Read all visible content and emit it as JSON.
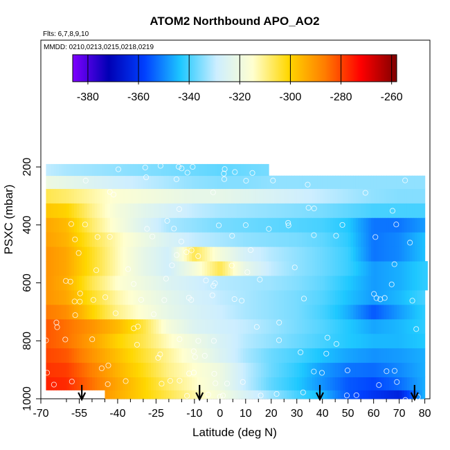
{
  "chart_data": {
    "type": "heatmap",
    "title": "ATOM2 Northbound APO_AO2",
    "annotation_flights": "Flts: 6,7,8,9,10",
    "annotation_dates": "MMDD: 0210,0213,0215,0218,0219",
    "xlabel": "Latitude (deg N)",
    "ylabel": "PSXC (mbar)",
    "xlim": [
      -70,
      82
    ],
    "ylim": [
      1000,
      100
    ],
    "y_reversed": true,
    "x_ticks": [
      "-70",
      "-55",
      "-40",
      "-25",
      "-10",
      "0",
      "10",
      "20",
      "30",
      "40",
      "50",
      "60",
      "70",
      "80"
    ],
    "x_tick_values": [
      -70,
      -55,
      -40,
      -25,
      -10,
      0,
      10,
      20,
      30,
      40,
      50,
      60,
      70,
      80
    ],
    "x_minor_ticks": [
      -60,
      -50,
      -45,
      -35,
      -30,
      -20,
      -15,
      -5,
      5,
      15,
      25,
      35,
      45,
      55,
      65,
      75
    ],
    "y_ticks": [
      "200",
      "400",
      "600",
      "800",
      "1000"
    ],
    "y_tick_values": [
      200,
      400,
      600,
      800,
      1000
    ],
    "colorbar": {
      "ticks": [
        "-380",
        "-360",
        "-340",
        "-320",
        "-300",
        "-280",
        "-260"
      ],
      "tick_values": [
        -380,
        -360,
        -340,
        -320,
        -300,
        -280,
        -260
      ],
      "range": [
        -386,
        -258
      ],
      "colors": [
        "#7f00ff",
        "#0000b4",
        "#0040ff",
        "#1ec8ff",
        "#cdeeff",
        "#ffffd0",
        "#ffd700",
        "#ff7d00",
        "#ff0000",
        "#800000"
      ]
    },
    "arrows_latitude": [
      -54,
      -8,
      39,
      76
    ],
    "pressure_levels": [
      990,
      950,
      900,
      850,
      800,
      750,
      700,
      650,
      600,
      550,
      500,
      450,
      400,
      350,
      300,
      250,
      210
    ],
    "level_lat_range": [
      [
        -45,
        80
      ],
      [
        -68,
        80
      ],
      [
        -68,
        80
      ],
      [
        -68,
        80
      ],
      [
        -68,
        80
      ],
      [
        -68,
        80
      ],
      [
        -68,
        80
      ],
      [
        -68,
        80
      ],
      [
        -68,
        81
      ],
      [
        -68,
        81
      ],
      [
        -68,
        80
      ],
      [
        -68,
        80
      ],
      [
        -68,
        80
      ],
      [
        -68,
        80
      ],
      [
        -68,
        80
      ],
      [
        -68,
        80
      ],
      [
        -68,
        19
      ]
    ],
    "profile_lat": [
      -68,
      -60,
      -50,
      -40,
      -30,
      -20,
      -10,
      0,
      10,
      20,
      30,
      40,
      50,
      60,
      70,
      80
    ],
    "values": [
      [
        -282,
        -282,
        -287,
        -294,
        -300,
        -306,
        -312,
        -318,
        -326,
        -333,
        -340,
        -345,
        -355,
        -360,
        -364,
        -345
      ],
      [
        -276,
        -277,
        -285,
        -293,
        -300,
        -308,
        -314,
        -320,
        -330,
        -338,
        -343,
        -349,
        -355,
        -357,
        -353,
        -346
      ],
      [
        -278,
        -279,
        -287,
        -295,
        -302,
        -310,
        -315,
        -320,
        -330,
        -337,
        -342,
        -348,
        -352,
        -353,
        -350,
        -346
      ],
      [
        -280,
        -282,
        -290,
        -297,
        -304,
        -311,
        -318,
        -325,
        -332,
        -337,
        -340,
        -344,
        -347,
        -349,
        -348,
        -346
      ],
      [
        -282,
        -285,
        -292,
        -300,
        -306,
        -314,
        -320,
        -326,
        -331,
        -334,
        -337,
        -340,
        -343,
        -345,
        -345,
        -343
      ],
      [
        -282,
        -285,
        -290,
        -296,
        -305,
        -318,
        -325,
        -328,
        -330,
        -333,
        -336,
        -339,
        -343,
        -347,
        -345,
        -342
      ],
      [
        -286,
        -289,
        -300,
        -310,
        -316,
        -322,
        -326,
        -329,
        -332,
        -334,
        -336,
        -340,
        -346,
        -355,
        -348,
        -342
      ],
      [
        -290,
        -293,
        -303,
        -312,
        -318,
        -323,
        -327,
        -330,
        -332,
        -334,
        -336,
        -339,
        -344,
        -348,
        -345,
        -340
      ],
      [
        -290,
        -294,
        -306,
        -315,
        -320,
        -325,
        -328,
        -331,
        -332,
        -333,
        -335,
        -338,
        -343,
        -348,
        -346,
        -342
      ],
      [
        -290,
        -293,
        -303,
        -313,
        -322,
        -328,
        -318,
        -306,
        -322,
        -330,
        -334,
        -337,
        -341,
        -348,
        -346,
        -342
      ],
      [
        -290,
        -293,
        -303,
        -313,
        -322,
        -328,
        -306,
        -318,
        -327,
        -331,
        -334,
        -337,
        -341,
        -352,
        -350,
        -344
      ],
      [
        -292,
        -295,
        -305,
        -313,
        -320,
        -326,
        -330,
        -332,
        -334,
        -335,
        -336,
        -338,
        -342,
        -352,
        -350,
        -344
      ],
      [
        -293,
        -296,
        -308,
        -317,
        -325,
        -332,
        -334,
        -336,
        -337,
        -338,
        -339,
        -340,
        -343,
        -352,
        -352,
        -348
      ],
      [
        -298,
        -300,
        -310,
        -318,
        -323,
        -327,
        -330,
        -332,
        -333,
        -334,
        -335,
        -336,
        -338,
        -340,
        -340,
        -340
      ],
      [
        -306,
        -308,
        -312,
        -316,
        -318,
        -320,
        -322,
        -322,
        -324,
        -326,
        -328,
        -330,
        -332,
        -334,
        -335,
        -335
      ],
      [
        -320,
        -322,
        -325,
        -328,
        -330,
        -332,
        -334,
        -335,
        -335,
        -334,
        -334,
        -334,
        -334,
        -334,
        -334,
        -334
      ],
      [
        -330,
        -332,
        -333,
        -334,
        -335,
        -336,
        -337,
        -338,
        -337,
        -336,
        -336,
        -336,
        -336,
        -336,
        -336,
        -336
      ]
    ],
    "grid": false,
    "legend": "colorbar-top"
  }
}
